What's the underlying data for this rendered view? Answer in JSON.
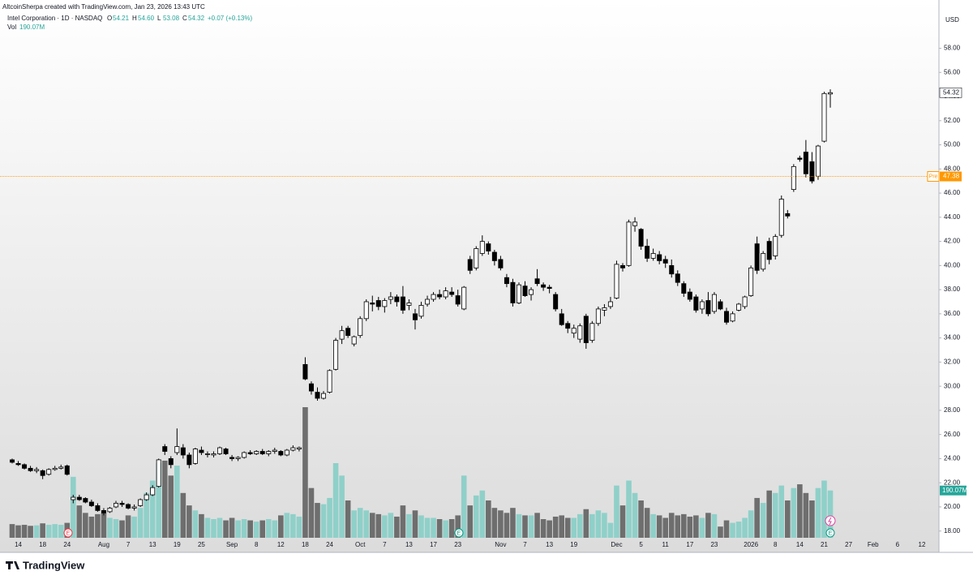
{
  "chart_data": {
    "type": "candlestick",
    "attribution": "AltcoinSherpa created with TradingView.com, Jan 23, 2026 13:43 UTC",
    "title": "Intel Corporation · 1D · NASDAQ",
    "legend": [
      {
        "key": "O",
        "value": "54.21"
      },
      {
        "key": "H",
        "value": "54.60"
      },
      {
        "key": "L",
        "value": "53.08"
      },
      {
        "key": "C",
        "value": "54.32"
      }
    ],
    "change": "+0.07 (+0.13%)",
    "volume_key": "Vol",
    "volume_text": "190.07M",
    "currency": "USD",
    "brand": "TradingView",
    "events": [
      "E",
      "E",
      "E"
    ],
    "premarket": {
      "label": "Pre",
      "value": 47.38
    },
    "categories": [
      null,
      "14",
      null,
      null,
      null,
      "18",
      null,
      null,
      null,
      "24",
      null,
      null,
      null,
      null,
      null,
      "Aug",
      null,
      null,
      null,
      "7",
      null,
      null,
      null,
      "13",
      null,
      null,
      null,
      "19",
      null,
      null,
      null,
      "25",
      null,
      null,
      null,
      null,
      "Sep",
      null,
      null,
      null,
      "8",
      null,
      null,
      null,
      "12",
      null,
      null,
      null,
      "18",
      null,
      null,
      null,
      "24",
      null,
      null,
      null,
      null,
      "Oct",
      null,
      null,
      null,
      "7",
      null,
      null,
      null,
      "13",
      null,
      null,
      null,
      "17",
      null,
      null,
      null,
      "23",
      null,
      null,
      null,
      null,
      null,
      null,
      "Nov",
      null,
      null,
      null,
      "7",
      null,
      null,
      null,
      "13",
      null,
      null,
      null,
      "19",
      null,
      null,
      null,
      null,
      null,
      null,
      "Dec",
      null,
      null,
      null,
      "5",
      null,
      null,
      null,
      "11",
      null,
      null,
      null,
      "17",
      null,
      null,
      null,
      "23",
      null,
      null,
      null,
      null,
      null,
      "2026",
      null,
      null,
      null,
      "8",
      null,
      null,
      null,
      "14",
      null,
      null,
      null,
      "21",
      null,
      null,
      null,
      "27",
      null,
      null,
      null,
      "Feb",
      null,
      null,
      null,
      "6",
      null,
      null,
      null,
      "12",
      null
    ],
    "open": [
      23.9,
      23.6,
      23.5,
      23.2,
      23.0,
      23.0,
      22.7,
      23.1,
      23.2,
      23.4,
      20.6,
      20.8,
      20.7,
      20.4,
      20.1,
      19.7,
      19.6,
      20.0,
      20.3,
      20.2,
      19.9,
      20.1,
      20.6,
      21.0,
      21.7,
      25.0,
      24.0,
      24.5,
      24.9,
      24.3,
      23.6,
      24.7,
      24.4,
      24.3,
      24.4,
      24.8,
      24.1,
      24.0,
      24.1,
      24.5,
      24.4,
      24.6,
      24.4,
      24.6,
      24.6,
      24.3,
      24.7,
      24.8,
      31.8,
      30.2,
      29.5,
      29.0,
      29.5,
      31.4,
      33.9,
      34.8,
      33.5,
      34.2,
      35.6,
      36.9,
      37.1,
      36.6,
      37.2,
      37.4,
      37.4,
      36.7,
      36.0,
      35.8,
      36.8,
      37.2,
      37.6,
      37.4,
      37.8,
      37.5,
      36.4,
      40.5,
      39.8,
      41.0,
      41.8,
      41.1,
      40.5,
      39.0,
      38.6,
      36.9,
      38.3,
      37.6,
      38.9,
      38.4,
      38.2,
      37.6,
      36.0,
      35.2,
      34.4,
      33.9,
      35.8,
      33.8,
      35.2,
      36.3,
      36.6,
      37.3,
      40.0,
      40.0,
      43.3,
      43.0,
      41.6,
      40.6,
      40.9,
      40.5,
      40.0,
      39.3,
      38.5,
      37.8,
      37.4,
      36.4,
      37.1,
      36.2,
      37.0,
      36.2,
      35.4,
      36.3,
      36.6,
      37.5,
      41.8,
      39.7,
      42.0,
      40.8,
      42.5,
      44.3,
      46.3,
      48.9,
      49.4,
      48.6,
      47.4,
      50.3,
      54.21,
      null,
      null,
      null,
      null,
      null,
      null,
      null,
      null,
      null,
      null,
      null,
      null,
      null,
      null,
      null,
      null
    ],
    "high": [
      24.0,
      23.8,
      23.6,
      23.4,
      23.3,
      23.1,
      23.2,
      23.4,
      23.5,
      23.5,
      21.0,
      21.0,
      20.8,
      20.6,
      20.3,
      19.9,
      20.0,
      20.5,
      20.5,
      20.3,
      20.2,
      20.7,
      21.2,
      21.8,
      24.0,
      25.2,
      24.2,
      26.5,
      25.2,
      24.5,
      24.9,
      25.0,
      24.6,
      24.6,
      25.0,
      24.9,
      24.3,
      24.2,
      24.6,
      24.7,
      24.7,
      24.8,
      24.7,
      24.9,
      24.7,
      24.8,
      25.1,
      25.0,
      32.4,
      30.4,
      29.9,
      29.6,
      31.4,
      34.0,
      35.0,
      35.0,
      34.2,
      35.8,
      37.2,
      37.5,
      37.4,
      37.3,
      37.8,
      37.6,
      38.3,
      37.2,
      36.4,
      37.0,
      37.5,
      37.8,
      38.0,
      38.2,
      38.2,
      38.0,
      38.3,
      40.8,
      41.6,
      42.5,
      42.0,
      41.3,
      40.8,
      39.3,
      38.9,
      38.6,
      38.7,
      38.2,
      39.7,
      38.6,
      38.4,
      37.8,
      36.4,
      35.4,
      35.1,
      35.2,
      36.0,
      35.4,
      36.6,
      36.8,
      37.4,
      40.4,
      40.2,
      43.8,
      44.0,
      43.1,
      42.2,
      41.4,
      41.2,
      40.8,
      40.5,
      39.6,
      38.7,
      38.1,
      37.6,
      37.2,
      37.8,
      37.8,
      37.2,
      36.5,
      36.2,
      36.9,
      37.5,
      40.0,
      42.4,
      41.2,
      42.3,
      42.6,
      45.8,
      44.6,
      48.4,
      49.1,
      50.4,
      49.4,
      50.0,
      54.4,
      54.6,
      null,
      null,
      null,
      null,
      null,
      null,
      null,
      null,
      null,
      null,
      null,
      null,
      null,
      null,
      null,
      null
    ],
    "low": [
      23.6,
      23.4,
      23.1,
      22.9,
      22.8,
      22.3,
      22.6,
      23.0,
      23.1,
      22.6,
      20.3,
      20.5,
      20.3,
      20.0,
      19.6,
      19.3,
      19.5,
      19.9,
      20.0,
      19.8,
      19.7,
      20.0,
      20.5,
      20.9,
      21.6,
      24.3,
      23.2,
      24.3,
      24.0,
      23.2,
      23.5,
      24.3,
      24.1,
      24.1,
      24.3,
      24.3,
      23.8,
      23.8,
      24.0,
      24.3,
      24.3,
      24.3,
      24.2,
      24.4,
      24.2,
      24.2,
      24.6,
      24.6,
      30.5,
      29.3,
      28.8,
      28.9,
      29.4,
      31.3,
      33.5,
      34.0,
      33.3,
      34.0,
      35.4,
      36.2,
      36.3,
      36.1,
      36.8,
      36.6,
      36.0,
      36.3,
      34.7,
      35.6,
      36.6,
      37.0,
      37.2,
      37.2,
      37.4,
      36.6,
      36.3,
      39.3,
      39.6,
      40.8,
      40.9,
      40.0,
      39.6,
      38.2,
      36.6,
      36.8,
      37.4,
      37.1,
      38.3,
      37.9,
      37.7,
      36.2,
      35.0,
      34.4,
      34.0,
      33.6,
      33.1,
      33.6,
      35.0,
      35.8,
      36.4,
      37.2,
      39.5,
      39.9,
      42.8,
      41.3,
      40.3,
      40.4,
      40.1,
      39.8,
      39.0,
      38.3,
      37.4,
      37.0,
      36.1,
      36.0,
      35.8,
      36.0,
      36.3,
      35.1,
      35.3,
      36.2,
      36.4,
      37.4,
      39.3,
      39.5,
      40.1,
      40.5,
      42.3,
      43.9,
      46.1,
      48.6,
      47.3,
      46.8,
      47.1,
      50.2,
      53.08,
      null,
      null,
      null,
      null,
      null,
      null,
      null,
      null,
      null,
      null,
      null,
      null,
      null,
      null,
      null,
      null
    ],
    "close": [
      23.7,
      23.5,
      23.2,
      23.0,
      23.1,
      22.6,
      23.1,
      23.2,
      23.3,
      22.7,
      20.8,
      20.6,
      20.4,
      20.1,
      19.7,
      19.5,
      19.9,
      20.3,
      20.2,
      19.9,
      20.0,
      20.6,
      21.0,
      21.6,
      23.9,
      24.6,
      23.5,
      25.0,
      24.3,
      23.5,
      24.8,
      24.5,
      24.4,
      24.4,
      24.9,
      24.4,
      24.0,
      24.1,
      24.5,
      24.4,
      24.6,
      24.4,
      24.6,
      24.7,
      24.3,
      24.7,
      24.9,
      24.9,
      30.6,
      29.6,
      29.0,
      29.4,
      31.3,
      33.8,
      34.6,
      34.2,
      34.1,
      35.6,
      37.0,
      36.8,
      36.6,
      37.1,
      37.4,
      37.0,
      36.3,
      36.9,
      35.5,
      36.7,
      37.2,
      37.6,
      37.4,
      37.9,
      37.6,
      36.8,
      38.2,
      39.6,
      41.4,
      42.0,
      41.2,
      40.4,
      39.8,
      38.5,
      36.9,
      38.4,
      37.5,
      38.0,
      38.5,
      38.2,
      38.1,
      36.4,
      35.1,
      34.8,
      34.8,
      35.0,
      33.6,
      35.2,
      36.4,
      36.5,
      37.0,
      40.1,
      39.8,
      43.6,
      43.6,
      41.6,
      40.6,
      41.0,
      40.4,
      40.2,
      39.3,
      38.6,
      37.7,
      37.2,
      36.3,
      37.0,
      36.0,
      37.6,
      36.4,
      35.3,
      36.0,
      36.8,
      37.4,
      39.8,
      39.6,
      41.0,
      40.5,
      42.4,
      45.5,
      44.1,
      48.2,
      48.8,
      47.6,
      47.0,
      49.9,
      54.25,
      54.32,
      null,
      null,
      null,
      null,
      null,
      null,
      null,
      null,
      null,
      null,
      null,
      null,
      null,
      null,
      null,
      null
    ],
    "volume": [
      55,
      50,
      52,
      48,
      50,
      58,
      52,
      55,
      52,
      60,
      245,
      130,
      100,
      85,
      95,
      100,
      80,
      75,
      70,
      90,
      85,
      120,
      180,
      230,
      300,
      310,
      250,
      290,
      180,
      130,
      110,
      95,
      80,
      75,
      80,
      70,
      80,
      70,
      75,
      70,
      65,
      70,
      75,
      70,
      90,
      100,
      95,
      85,
      525,
      200,
      140,
      135,
      160,
      300,
      250,
      150,
      110,
      120,
      110,
      100,
      95,
      90,
      100,
      85,
      130,
      95,
      110,
      90,
      80,
      80,
      75,
      70,
      75,
      90,
      250,
      130,
      170,
      190,
      150,
      120,
      110,
      100,
      120,
      95,
      90,
      90,
      100,
      75,
      70,
      85,
      90,
      80,
      80,
      95,
      115,
      95,
      110,
      100,
      60,
      210,
      130,
      230,
      180,
      150,
      120,
      95,
      90,
      80,
      100,
      90,
      95,
      85,
      90,
      80,
      100,
      95,
      45,
      70,
      60,
      65,
      80,
      110,
      160,
      140,
      190,
      180,
      210,
      150,
      200,
      215,
      180,
      150,
      200,
      230,
      190.07,
      null,
      null,
      null,
      null,
      null,
      null,
      null,
      null,
      null,
      null,
      null,
      null,
      null,
      null,
      null,
      null
    ],
    "volume_label": "190.07M",
    "ylim": [
      16.3,
      62.0
    ],
    "yticks": [
      {
        "value": 18,
        "label": "18.00"
      },
      {
        "value": 20,
        "label": "20.00"
      },
      {
        "value": 22,
        "label": "22.00"
      },
      {
        "value": 24,
        "label": "24.00"
      },
      {
        "value": 26,
        "label": "26.00"
      },
      {
        "value": 28,
        "label": "28.00"
      },
      {
        "value": 30,
        "label": "30.00"
      },
      {
        "value": 32,
        "label": "32.00"
      },
      {
        "value": 34,
        "label": "34.00"
      },
      {
        "value": 36,
        "label": "36.00"
      },
      {
        "value": 38,
        "label": "38.00"
      },
      {
        "value": 40,
        "label": "40.00"
      },
      {
        "value": 42,
        "label": "42.00"
      },
      {
        "value": 44,
        "label": "44.00"
      },
      {
        "value": 46,
        "label": "46.00"
      },
      {
        "value": 48,
        "label": "48.00"
      },
      {
        "value": 50,
        "label": "50.00"
      },
      {
        "value": 52,
        "label": "52.00"
      },
      {
        "value": 54,
        "label": "54.00"
      },
      {
        "value": 56,
        "label": "56.00"
      },
      {
        "value": 58,
        "label": "58.00"
      }
    ],
    "up_color": "#ffffff",
    "down_color": "#000000",
    "wick_color": "#000000",
    "volume_up_color": "#8fd0c9",
    "volume_down_color": "#6e6e6e",
    "premarket_color": "#ff9800",
    "volume_label_color": "#26a69a"
  }
}
